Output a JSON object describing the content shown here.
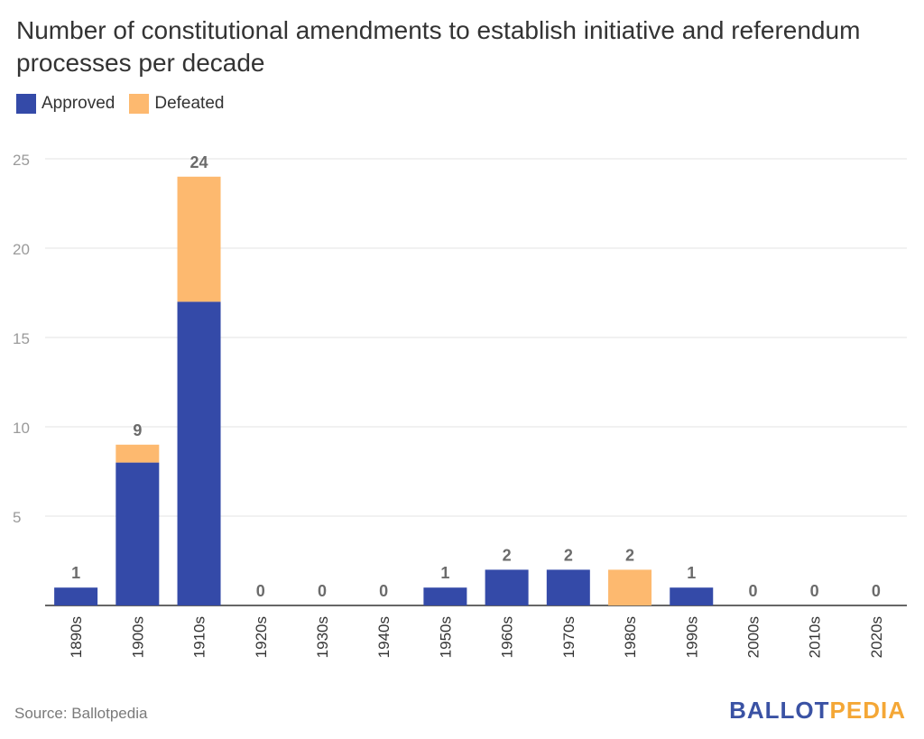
{
  "title": "Number of constitutional amendments to establish initiative and referendum processes per decade",
  "legend": [
    {
      "label": "Approved",
      "color": "#344aa8"
    },
    {
      "label": "Defeated",
      "color": "#fdb96f"
    }
  ],
  "source": "Source: Ballotpedia",
  "logo": {
    "part1": "BALLOT",
    "part2": "PEDIA"
  },
  "chart_data": {
    "type": "bar",
    "stacked": true,
    "categories": [
      "1890s",
      "1900s",
      "1910s",
      "1920s",
      "1930s",
      "1940s",
      "1950s",
      "1960s",
      "1970s",
      "1980s",
      "1990s",
      "2000s",
      "2010s",
      "2020s"
    ],
    "series": [
      {
        "name": "Approved",
        "color": "#344aa8",
        "values": [
          1,
          8,
          17,
          0,
          0,
          0,
          1,
          2,
          2,
          0,
          1,
          0,
          0,
          0
        ]
      },
      {
        "name": "Defeated",
        "color": "#fdb96f",
        "values": [
          0,
          1,
          7,
          0,
          0,
          0,
          0,
          0,
          0,
          2,
          0,
          0,
          0,
          0
        ]
      }
    ],
    "totals": [
      1,
      9,
      24,
      0,
      0,
      0,
      1,
      2,
      2,
      2,
      1,
      0,
      0,
      0
    ],
    "yticks": [
      5,
      10,
      15,
      20,
      25
    ],
    "ylim": [
      0,
      25
    ],
    "grid": true,
    "legend_position": "top-left"
  }
}
